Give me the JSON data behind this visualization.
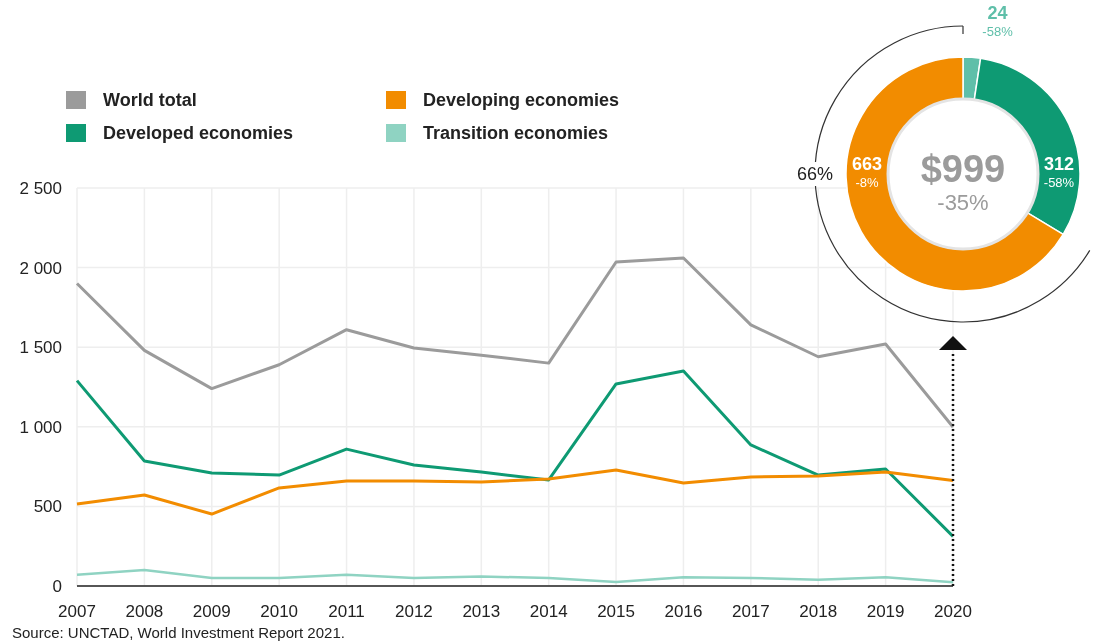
{
  "chart_data": [
    {
      "type": "line",
      "categories": [
        "2007",
        "2008",
        "2009",
        "2010",
        "2011",
        "2012",
        "2013",
        "2014",
        "2015",
        "2016",
        "2017",
        "2018",
        "2019",
        "2020"
      ],
      "series": [
        {
          "name": "World total",
          "color": "#9b9b9b",
          "values": [
            1900,
            1480,
            1240,
            1390,
            1610,
            1495,
            1450,
            1400,
            2035,
            2060,
            1640,
            1440,
            1520,
            999
          ]
        },
        {
          "name": "Developed economies",
          "color": "#0e9a73",
          "values": [
            1290,
            785,
            710,
            697,
            860,
            760,
            716,
            666,
            1269,
            1350,
            886,
            697,
            735,
            312
          ]
        },
        {
          "name": "Developing economies",
          "color": "#f28c00",
          "values": [
            515,
            572,
            452,
            616,
            660,
            660,
            653,
            672,
            729,
            647,
            685,
            691,
            716,
            663
          ]
        },
        {
          "name": "Transition economies",
          "color": "#8fd3c2",
          "values": [
            70,
            100,
            50,
            50,
            70,
            50,
            60,
            50,
            25,
            55,
            50,
            40,
            55,
            24
          ]
        }
      ],
      "ylim": [
        0,
        2500
      ],
      "yticks": [
        0,
        {
          "value": 500,
          "label": "500"
        },
        {
          "value": 1000,
          "label": "1 000"
        },
        {
          "value": 1500,
          "label": "1 500"
        },
        {
          "value": 2000,
          "label": "2 000"
        },
        {
          "value": 2500,
          "label": "2 500"
        }
      ],
      "grid": true,
      "legend": "top left",
      "marker": "none",
      "line_style": "solid",
      "annotations": [
        "Source: UNCTAD, World Investment Report 2021."
      ]
    },
    {
      "type": "donut",
      "categories": [
        null,
        null,
        null
      ],
      "values": [
        24,
        312,
        663
      ],
      "colors": [
        "#5fbfa9",
        "#0e9a73",
        "#f28c00"
      ],
      "data_labels": true,
      "annotations": [
        "-58%",
        "-58%",
        "-8%",
        "$999",
        "-35%",
        "66%"
      ]
    }
  ]
}
